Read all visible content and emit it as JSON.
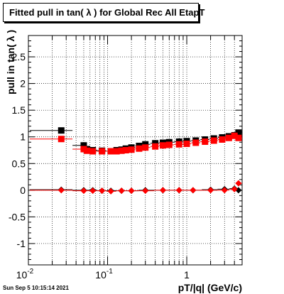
{
  "chart_data": {
    "type": "scatter",
    "title": "Fitted pull in tan( λ ) for Global Rec All EtapT",
    "xlabel": "pT/|q| (GeV/c)",
    "ylabel": "pull in tan( λ )",
    "x_log": true,
    "xlim": [
      0.01,
      5
    ],
    "ylim": [
      -1.4,
      2.9
    ],
    "grid": true,
    "xticks": [
      {
        "value": 0.01,
        "base": "10",
        "exp": "-2"
      },
      {
        "value": 0.1,
        "base": "10",
        "exp": "-1"
      },
      {
        "value": 1,
        "base": "1",
        "exp": ""
      }
    ],
    "yticks": [
      -1,
      -0.5,
      0,
      0.5,
      1,
      1.5,
      2,
      2.5
    ],
    "series": [
      {
        "color": "#000000",
        "marker": "square",
        "x": [
          0.026,
          0.05,
          0.055,
          0.065,
          0.085,
          0.11,
          0.13,
          0.15,
          0.17,
          0.2,
          0.25,
          0.3,
          0.4,
          0.5,
          0.6,
          0.8,
          1.0,
          1.3,
          1.7,
          2.2,
          2.8,
          3.4,
          4.0,
          4.5
        ],
        "y": [
          1.12,
          0.84,
          0.77,
          0.75,
          0.74,
          0.73,
          0.75,
          0.76,
          0.78,
          0.8,
          0.83,
          0.86,
          0.88,
          0.89,
          0.9,
          0.91,
          0.92,
          0.93,
          0.95,
          0.97,
          0.99,
          1.01,
          1.03,
          1.08
        ]
      },
      {
        "color": "#ff0000",
        "marker": "square",
        "x": [
          0.026,
          0.05,
          0.055,
          0.065,
          0.085,
          0.11,
          0.13,
          0.15,
          0.17,
          0.2,
          0.25,
          0.3,
          0.4,
          0.5,
          0.6,
          0.8,
          1.0,
          1.3,
          1.7,
          2.2,
          2.8,
          3.4,
          4.0,
          4.5
        ],
        "y": [
          0.96,
          0.77,
          0.74,
          0.73,
          0.73,
          0.73,
          0.73,
          0.74,
          0.75,
          0.76,
          0.78,
          0.8,
          0.82,
          0.84,
          0.85,
          0.86,
          0.87,
          0.89,
          0.91,
          0.93,
          0.95,
          0.98,
          1.02,
          0.98
        ]
      },
      {
        "color": "#000000",
        "marker": "diamond",
        "x": [
          0.026,
          0.05,
          0.065,
          0.085,
          0.11,
          0.15,
          0.2,
          0.3,
          0.5,
          0.8,
          1.2,
          2.0,
          3.0,
          4.0,
          4.5
        ],
        "y": [
          0.01,
          0.0,
          0.0,
          -0.01,
          -0.01,
          -0.01,
          -0.01,
          0.0,
          0.0,
          0.0,
          0.0,
          0.01,
          0.02,
          0.03,
          0.0
        ]
      },
      {
        "color": "#ff0000",
        "marker": "diamond",
        "x": [
          0.026,
          0.05,
          0.065,
          0.085,
          0.11,
          0.15,
          0.2,
          0.3,
          0.5,
          0.8,
          1.2,
          2.0,
          3.0,
          4.0,
          4.5
        ],
        "y": [
          0.0,
          -0.01,
          -0.01,
          -0.01,
          -0.02,
          -0.01,
          -0.01,
          -0.01,
          0.0,
          0.0,
          0.0,
          0.0,
          0.0,
          0.02,
          0.13
        ]
      }
    ]
  },
  "footer": {
    "timestamp": "Sun Sep  5 10:15:14 2021"
  }
}
